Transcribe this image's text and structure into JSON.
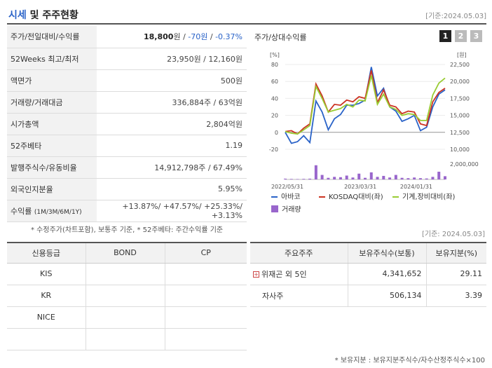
{
  "header": {
    "title_accent": "시세",
    "title_rest": " 및 주주현황",
    "basis": "[기준:2024.05.03]"
  },
  "quote": {
    "rows": [
      {
        "label": "주가/전일대비/수익률",
        "price": "18,800",
        "unit": "원",
        "sep1": " / ",
        "change": "-70원",
        "sep2": " / ",
        "rate": "-0.37%"
      },
      {
        "label": "52Weeks 최고/최저",
        "value": "23,950원 / 12,160원"
      },
      {
        "label": "액면가",
        "value": "500원"
      },
      {
        "label": "거래량/거래대금",
        "value": "336,884주 / 63억원"
      },
      {
        "label": "시가총액",
        "value": "2,804억원"
      },
      {
        "label": "52주베타",
        "value": "1.19"
      },
      {
        "label": "발행주식수/유동비율",
        "value": "14,912,798주 / 67.49%"
      },
      {
        "label": "외국인지분율",
        "value": "5.95%"
      },
      {
        "label": "수익률",
        "label_small": "(1M/3M/6M/1Y)",
        "value": "+13.87%/ +47.57%/ +25.33%/ +3.13%"
      }
    ],
    "note": "* 수정주가(차트포함), 보통주 기준, * 52주베타: 주간수익률 기준"
  },
  "chart": {
    "title": "주가/상대수익률",
    "tabs": [
      "1",
      "2",
      "3"
    ],
    "active_tab": 0
  },
  "chart_data": {
    "type": "line",
    "left_unit": "[%]",
    "right_unit": "[원]",
    "left_ticks": [
      "80",
      "60",
      "40",
      "20",
      "0",
      "-20"
    ],
    "left_range": [
      -20,
      80
    ],
    "right_ticks": [
      "22,500",
      "20,000",
      "17,500",
      "15,000",
      "12,500",
      "10,000"
    ],
    "right_range": [
      10000,
      22500
    ],
    "volume_tick": "2,000,000",
    "x_labels": [
      "2022/05/31",
      "2023/03/31",
      "2024/01/31"
    ],
    "series": [
      {
        "name": "아바코",
        "color": "#2a63c8",
        "values": [
          0,
          -13,
          -11,
          -4,
          -12,
          37,
          24,
          3,
          16,
          21,
          32,
          32,
          34,
          38,
          77,
          43,
          52,
          30,
          25,
          13,
          16,
          20,
          2,
          6,
          30,
          45,
          50
        ]
      },
      {
        "name": "KOSDAQ대비(좌)",
        "color": "#cc3322",
        "values": [
          1,
          2,
          -2,
          5,
          10,
          57,
          43,
          24,
          33,
          32,
          38,
          36,
          42,
          40,
          73,
          35,
          50,
          32,
          30,
          22,
          25,
          24,
          10,
          8,
          36,
          47,
          52
        ]
      },
      {
        "name": "기계,장비대비(좌)",
        "color": "#99cc33",
        "values": [
          1,
          -1,
          -2,
          3,
          8,
          54,
          40,
          24,
          26,
          28,
          33,
          30,
          38,
          37,
          67,
          33,
          45,
          30,
          27,
          20,
          22,
          21,
          14,
          14,
          44,
          58,
          64
        ]
      }
    ],
    "volume": {
      "name": "거래량",
      "color": "#9966cc",
      "values": [
        120000,
        80000,
        60000,
        90000,
        120000,
        2200000,
        700000,
        250000,
        400000,
        350000,
        600000,
        300000,
        900000,
        250000,
        1100000,
        400000,
        550000,
        300000,
        700000,
        250000,
        200000,
        300000,
        200000,
        150000,
        400000,
        1200000,
        500000
      ]
    }
  },
  "basis_mid": "[기준: 2024.05.03]",
  "grades": {
    "headers": [
      "신용등급",
      "BOND",
      "CP"
    ],
    "rows": [
      [
        "KIS",
        "",
        ""
      ],
      [
        "KR",
        "",
        ""
      ],
      [
        "NICE",
        "",
        ""
      ],
      [
        "",
        "",
        ""
      ]
    ]
  },
  "holders": {
    "headers": [
      "주요주주",
      "보유주식수(보통)",
      "보유지분(%)"
    ],
    "rows": [
      {
        "name": "위재곤 외 5인",
        "shares": "4,341,652",
        "ratio": "29.11",
        "expand": true
      },
      {
        "name": "자사주",
        "shares": "506,134",
        "ratio": "3.39",
        "expand": false
      }
    ],
    "note": "* 보유지분 : 보유지분주식수/자수산정주식수×100"
  }
}
